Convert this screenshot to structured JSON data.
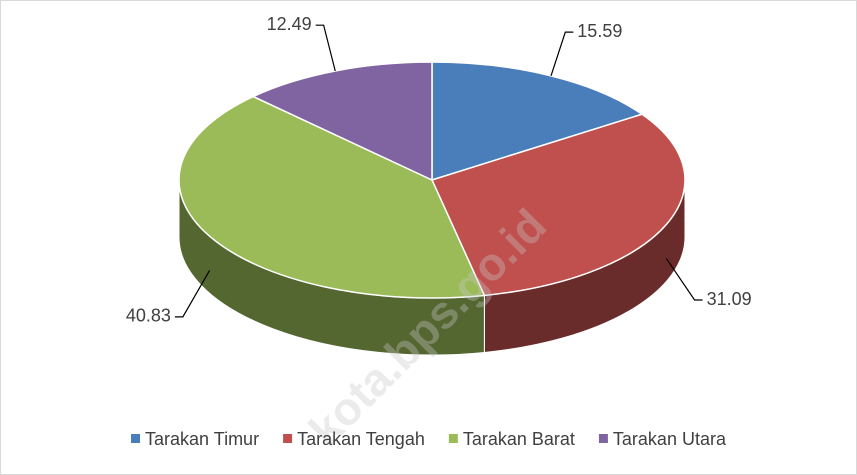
{
  "chart_data": {
    "type": "pie3d",
    "categories": [
      "Tarakan Timur",
      "Tarakan Tengah",
      "Tarakan Barat",
      "Tarakan Utara"
    ],
    "values": [
      15.59,
      31.09,
      40.83,
      12.49
    ],
    "colors": [
      "#4a7ebb",
      "#c0504d",
      "#9bbb59",
      "#8064a2"
    ],
    "legend": "bottom",
    "watermark": "kota.bps.go.id"
  }
}
